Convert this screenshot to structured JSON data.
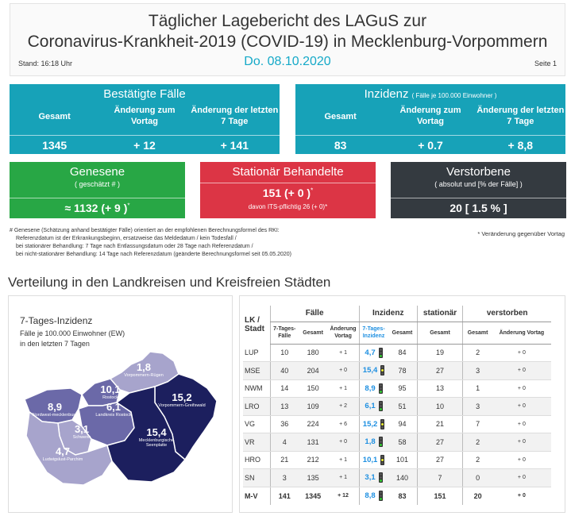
{
  "header": {
    "title_line1": "Täglicher Lagebericht des LAGuS zur",
    "title_line2": "Coronavirus-Krankheit-2019 (COVID-19) in Mecklenburg-Vorpommern",
    "stand": "Stand: 16:18 Uhr",
    "date": "Do. 08.10.2020",
    "page": "Seite 1"
  },
  "cases": {
    "title": "Bestätigte Fälle",
    "col1": "Gesamt",
    "col2": "Änderung zum Vortag",
    "col3": "Änderung der letzten 7 Tage",
    "val1": "1345",
    "val2": "+ 12",
    "val3": "+ 141"
  },
  "incidence": {
    "title": "Inzidenz",
    "subtitle": "( Fälle je 100.000 Einwohner )",
    "col1": "Gesamt",
    "col2": "Änderung zum Vortag",
    "col3": "Änderung der letzten 7 Tage",
    "val1": "83",
    "val2": "+ 0.7",
    "val3": "+ 8,8"
  },
  "recovered": {
    "title": "Genesene",
    "subtitle": "( geschätzt # )",
    "value": "≈ 1132 (+ 9 )",
    "mark": "*"
  },
  "hospital": {
    "title": "Stationär Behandelte",
    "value": "151 (+ 0 )",
    "mark": "*",
    "its": "davon ITS-pflichtig 26 (+ 0)*"
  },
  "deaths": {
    "title": "Verstorbene",
    "subtitle": "( absolut und [% der Fälle] )",
    "value": "20 [ 1.5 % ]"
  },
  "notes": {
    "line1": "# Genesene (Schätzung anhand bestätigter Fälle) orientiert an der empfohlenen Berechnungsformel des RKI:",
    "line2": "Referenzdatum ist der Erkrankungsbeginn, ersatzweise das Meldedatum / kein Todesfall /",
    "line3": "bei stationärer Behandlung: 7 Tage nach Entlassungsdatum oder 28 Tage nach Referenzdatum /",
    "line4": "bei nicht-stationärer Behandlung: 14 Tage nach Referenzdatum (geänderte Berechnungsformel seit 05.05.2020)",
    "veraenderung": "* Veränderung gegenüber Vortag"
  },
  "section_title": "Verteilung in den Landkreisen und Kreisfreien Städten",
  "map": {
    "title": "7-Tages-Inzidenz",
    "sub1": "Fälle je 100.000 Einwohner (EW)",
    "sub2": "in den letzten 7 Tagen",
    "regions": [
      {
        "value": "1,8",
        "name": "Vorpommern-Rügen"
      },
      {
        "value": "10,1",
        "name": "Rostock"
      },
      {
        "value": "15,2",
        "name": "Vorpommern-Greifswald"
      },
      {
        "value": "8,9",
        "name": "Nordwest-mecklenburg"
      },
      {
        "value": "6,1",
        "name": "Landkreis Rostock"
      },
      {
        "value": "3,1",
        "name": "Schwerin"
      },
      {
        "value": "15,4",
        "name": "Mecklenburgische Seenplatte"
      },
      {
        "value": "4,7",
        "name": "Ludwigslust-Parchim"
      }
    ]
  },
  "table": {
    "h_lk": "LK /",
    "h_stadt": "Stadt",
    "h_faelle": "Fälle",
    "h_inzidenz": "Inzidenz",
    "h_stationaer": "stationär",
    "h_verstorben": "verstorben",
    "s_7tage": "7-Tages-Fälle",
    "s_gesamt": "Gesamt",
    "s_aend": "Änderung Vortag",
    "s_7inz": "7-Tages-Inzidenz",
    "rows": [
      {
        "lk": "LUP",
        "f7": "10",
        "fg": "180",
        "fa": "+ 1",
        "i7": "4,7",
        "ig": "84",
        "st": "19",
        "vg": "2",
        "va": "+ 0",
        "ampel": "green"
      },
      {
        "lk": "MSE",
        "f7": "40",
        "fg": "204",
        "fa": "+ 0",
        "i7": "15,4",
        "ig": "78",
        "st": "27",
        "vg": "3",
        "va": "+ 0",
        "ampel": "yellow"
      },
      {
        "lk": "NWM",
        "f7": "14",
        "fg": "150",
        "fa": "+ 1",
        "i7": "8,9",
        "ig": "95",
        "st": "13",
        "vg": "1",
        "va": "+ 0",
        "ampel": "green"
      },
      {
        "lk": "LRO",
        "f7": "13",
        "fg": "109",
        "fa": "+ 2",
        "i7": "6,1",
        "ig": "51",
        "st": "10",
        "vg": "3",
        "va": "+ 0",
        "ampel": "green"
      },
      {
        "lk": "VG",
        "f7": "36",
        "fg": "224",
        "fa": "+ 6",
        "i7": "15,2",
        "ig": "94",
        "st": "21",
        "vg": "7",
        "va": "+ 0",
        "ampel": "yellow"
      },
      {
        "lk": "VR",
        "f7": "4",
        "fg": "131",
        "fa": "+ 0",
        "i7": "1,8",
        "ig": "58",
        "st": "27",
        "vg": "2",
        "va": "+ 0",
        "ampel": "green"
      },
      {
        "lk": "HRO",
        "f7": "21",
        "fg": "212",
        "fa": "+ 1",
        "i7": "10,1",
        "ig": "101",
        "st": "27",
        "vg": "2",
        "va": "+ 0",
        "ampel": "yellow"
      },
      {
        "lk": "SN",
        "f7": "3",
        "fg": "135",
        "fa": "+ 1",
        "i7": "3,1",
        "ig": "140",
        "st": "7",
        "vg": "0",
        "va": "+ 0",
        "ampel": "green"
      },
      {
        "lk": "M-V",
        "f7": "141",
        "fg": "1345",
        "fa": "+ 12",
        "i7": "8,8",
        "ig": "83",
        "st": "151",
        "vg": "20",
        "va": "+ 0",
        "ampel": "green"
      }
    ]
  },
  "colors": {
    "teal": "#17a2b8",
    "green": "#28a745",
    "red": "#dc3545",
    "dark": "#343a40",
    "map_dark": "#1c1f5e",
    "map_mid": "#6b69a8",
    "map_light": "#a7a4cc"
  }
}
